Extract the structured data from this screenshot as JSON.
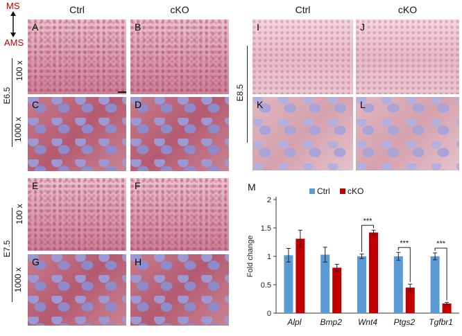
{
  "axis_marker": {
    "top": "MS",
    "bottom": "AMS",
    "color": "#c00000"
  },
  "columns": {
    "ctrl": "Ctrl",
    "cko": "cKO"
  },
  "stages": {
    "e65": "E6.5",
    "e75": "E7.5",
    "e85": "E8.5"
  },
  "magnifications": {
    "low": "100 x",
    "high": "1000 x"
  },
  "panels": {
    "A": "A",
    "B": "B",
    "C": "C",
    "D": "D",
    "E": "E",
    "F": "F",
    "G": "G",
    "H": "H",
    "I": "I",
    "J": "J",
    "K": "K",
    "L": "L"
  },
  "chart_panel_letter": "M",
  "chart_data": {
    "type": "bar",
    "categories": [
      "Alpl",
      "Bmp2",
      "Wnt4",
      "Ptgs2",
      "Tgfbr1"
    ],
    "series": [
      {
        "name": "Ctrl",
        "color": "#5b9bd5",
        "values": [
          1.02,
          1.03,
          1.0,
          1.0,
          1.0
        ],
        "errors": [
          0.12,
          0.13,
          0.04,
          0.07,
          0.06
        ]
      },
      {
        "name": "cKO",
        "color": "#c00000",
        "values": [
          1.31,
          0.8,
          1.42,
          0.45,
          0.17
        ],
        "errors": [
          0.15,
          0.06,
          0.04,
          0.06,
          0.02
        ]
      }
    ],
    "ylabel": "Fold change",
    "ylim": [
      0,
      2
    ],
    "yticks": [
      "0",
      "0.5",
      "1",
      "1.5",
      "2"
    ],
    "significance": [
      {
        "category": "Wnt4",
        "label": "***"
      },
      {
        "category": "Ptgs2",
        "label": "***"
      },
      {
        "category": "Tgfbr1",
        "label": "***"
      }
    ],
    "legend_position": "top"
  }
}
